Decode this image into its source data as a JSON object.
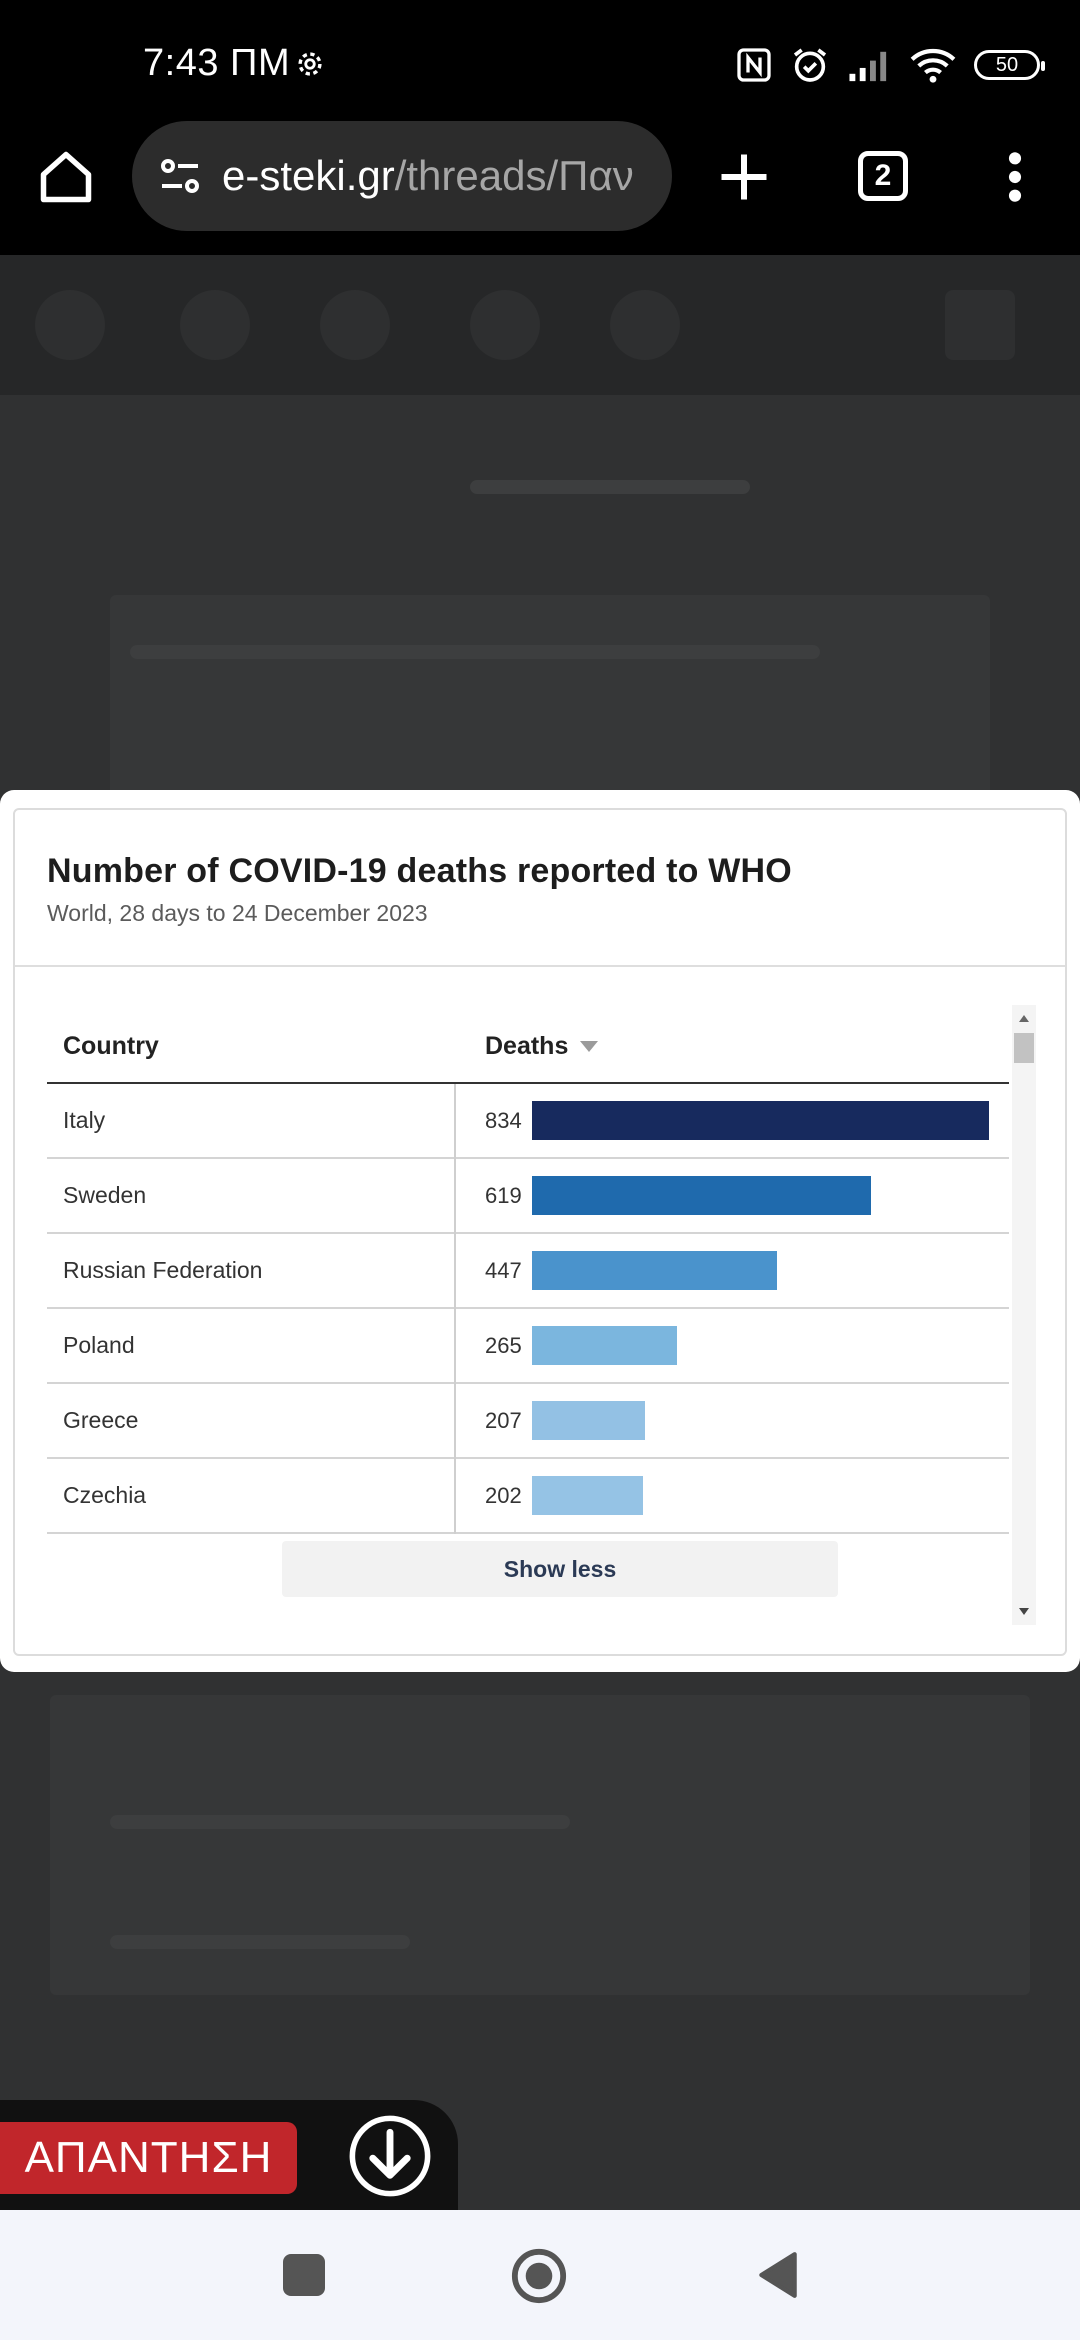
{
  "status_bar": {
    "time": "7:43 ΠΜ",
    "battery": "50"
  },
  "browser": {
    "url_host": "e-steki.gr",
    "url_path": "/threads/Παν",
    "tab_count": "2"
  },
  "chart_card": {
    "title": "Number of COVID-19 deaths reported to WHO",
    "subtitle": "World, 28 days to 24 December 2023",
    "column_country": "Country",
    "column_deaths": "Deaths",
    "show_less_label": "Show less"
  },
  "chart_data": {
    "type": "table",
    "title": "Number of COVID-19 deaths reported to WHO",
    "subtitle": "World, 28 days to 24 December 2023",
    "columns": [
      "Country",
      "Deaths"
    ],
    "sort": "Deaths descending",
    "categories": [
      "Italy",
      "Sweden",
      "Russian Federation",
      "Poland",
      "Greece",
      "Czechia"
    ],
    "values": [
      834,
      619,
      447,
      265,
      207,
      202
    ],
    "bar_colors": [
      "#172a5e",
      "#1f6aad",
      "#4a93cc",
      "#7bb6de",
      "#93c1e4",
      "#95c3e5"
    ]
  },
  "reply": {
    "label": "ΑΠΑΝΤΗΣΗ"
  },
  "colors": {
    "reply_red": "#c1262b",
    "overlay_bg": "#303132"
  }
}
